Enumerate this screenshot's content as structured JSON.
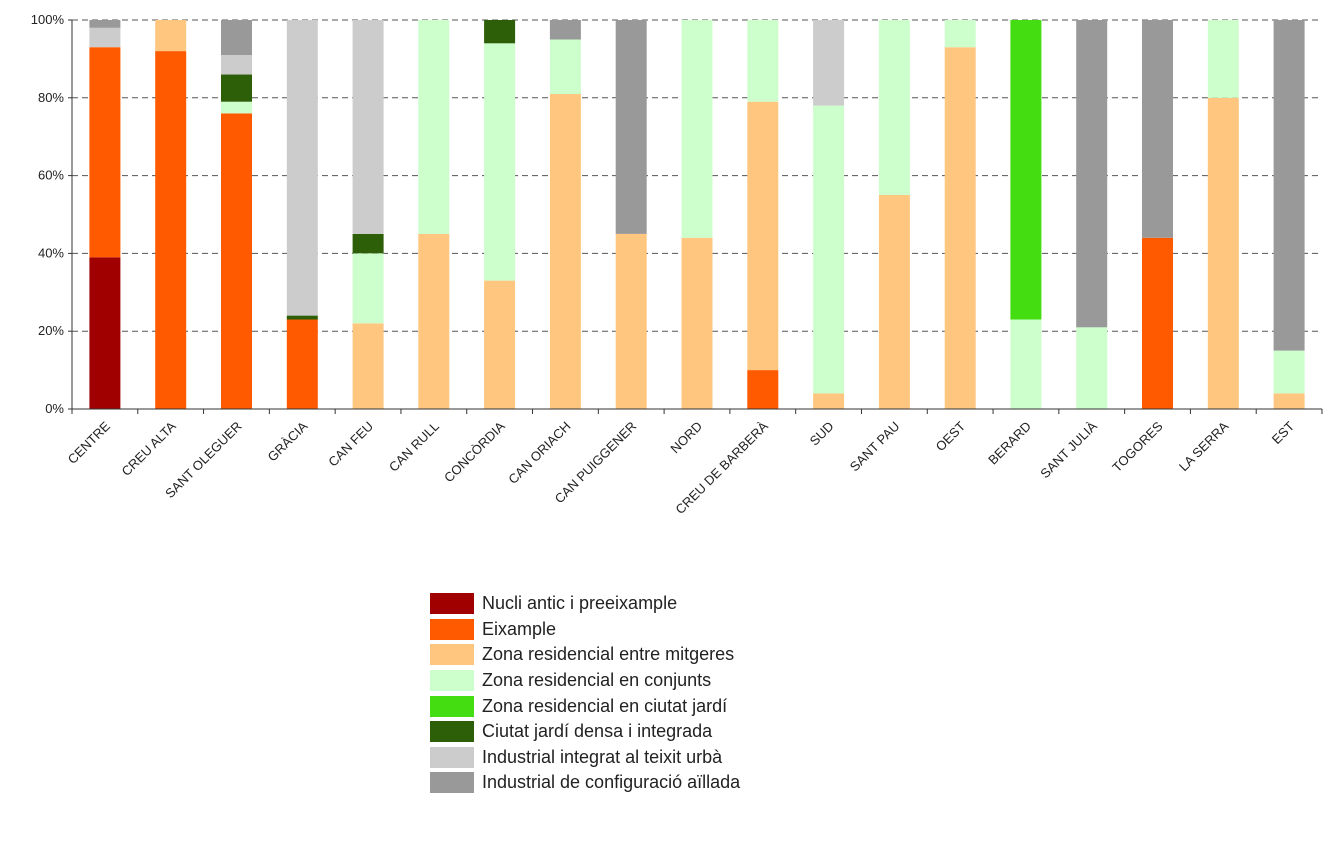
{
  "chart_data": {
    "type": "bar",
    "stacked": true,
    "normalized": true,
    "categories": [
      "CENTRE",
      "CREU ALTA",
      "SANT OLEGUER",
      "GRÀCIA",
      "CAN FEU",
      "CAN RULL",
      "CONCÒRDIA",
      "CAN ORIACH",
      "CAN PUIGGENER",
      "NORD",
      "CREU DE BARBERÀ",
      "SUD",
      "SANT PAU",
      "OEST",
      "BERARD",
      "SANT JULIÀ",
      "TOGORES",
      "LA SERRA",
      "EST"
    ],
    "y_ticks": [
      "0%",
      "20%",
      "40%",
      "60%",
      "80%",
      "100%"
    ],
    "ylim": [
      0,
      100
    ],
    "grid": "horizontal-dashed",
    "legend_position": "bottom-center",
    "series": [
      {
        "name": "Nucli antic i preeixample",
        "color": "#a00000",
        "values": [
          39,
          0,
          0,
          0,
          0,
          0,
          0,
          0,
          0,
          0,
          0,
          0,
          0,
          0,
          0,
          0,
          0,
          0,
          0
        ]
      },
      {
        "name": "Eixample",
        "color": "#ff5a00",
        "values": [
          54,
          92,
          76,
          23,
          0,
          0,
          0,
          0,
          0,
          0,
          10,
          0,
          0,
          0,
          0,
          0,
          44,
          0,
          0
        ]
      },
      {
        "name": "Zona residencial entre mitgeres",
        "color": "#ffc680",
        "values": [
          0,
          8,
          0,
          0,
          22,
          45,
          33,
          81,
          45,
          44,
          69,
          4,
          55,
          93,
          0,
          0,
          0,
          80,
          4
        ]
      },
      {
        "name": "Zona residencial en conjunts",
        "color": "#ccffcc",
        "values": [
          0,
          0,
          3,
          0,
          18,
          55,
          61,
          14,
          0,
          56,
          21,
          74,
          45,
          7,
          23,
          21,
          0,
          20,
          11
        ]
      },
      {
        "name": "Zona residencial en ciutat jardí",
        "color": "#44dd11",
        "values": [
          0,
          0,
          0,
          0,
          0,
          0,
          0,
          0,
          0,
          0,
          0,
          0,
          0,
          0,
          77,
          0,
          0,
          0,
          0
        ]
      },
      {
        "name": "Ciutat jardí densa i integrada",
        "color": "#2d5e08",
        "values": [
          0,
          0,
          7,
          1,
          5,
          0,
          6,
          0,
          0,
          0,
          0,
          0,
          0,
          0,
          0,
          0,
          0,
          0,
          0
        ]
      },
      {
        "name": "Industrial integrat al teixit urbà",
        "color": "#cccccc",
        "values": [
          5,
          0,
          5,
          76,
          55,
          0,
          0,
          0,
          0,
          0,
          0,
          22,
          0,
          0,
          0,
          0,
          0,
          0,
          0
        ]
      },
      {
        "name": "Industrial de configuració aïllada",
        "color": "#999999",
        "values": [
          2,
          0,
          9,
          0,
          0,
          0,
          0,
          5,
          55,
          0,
          0,
          0,
          0,
          0,
          0,
          79,
          56,
          0,
          85
        ]
      }
    ]
  }
}
